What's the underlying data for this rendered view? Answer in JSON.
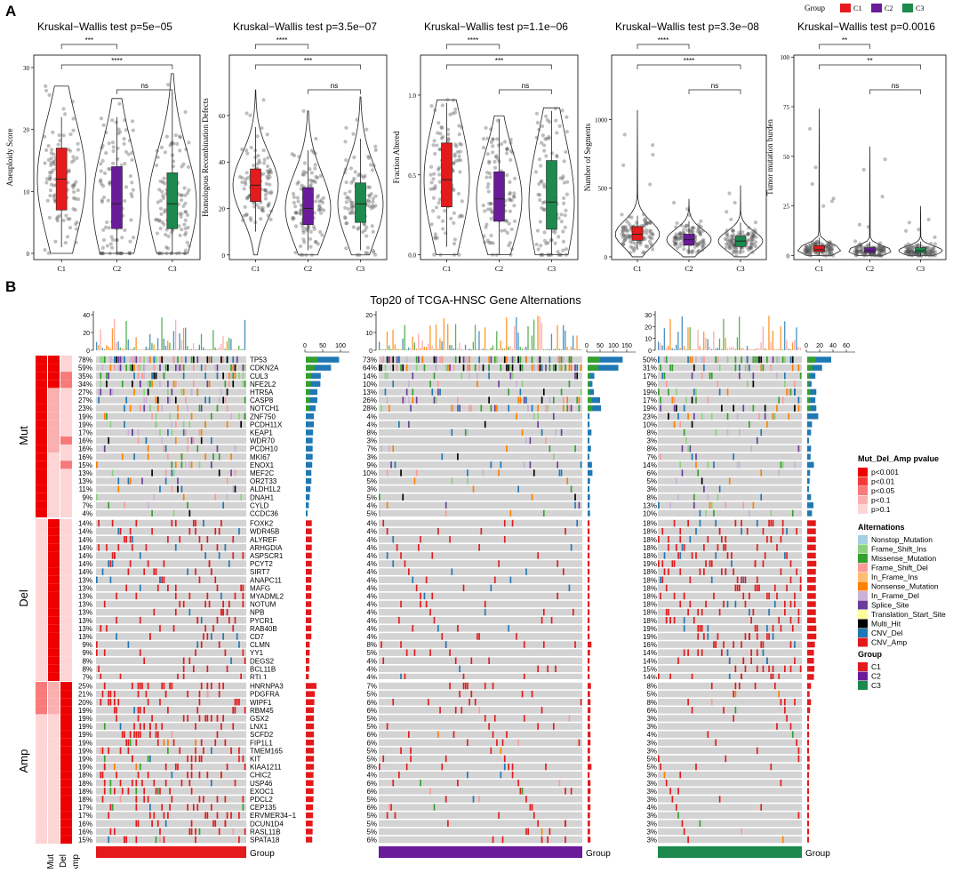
{
  "panel_labels": {
    "a": "A",
    "b": "B"
  },
  "colors": {
    "C1": "#e41a1c",
    "C2": "#6a1b9a",
    "C3": "#1b8a4c",
    "bg_cell": "#d3d3d3",
    "Nonstop_Mutation": "#a6cee3",
    "Frame_Shift_Ins": "#8dd17e",
    "Missense_Mutation": "#33a02c",
    "Frame_Shift_Del": "#fb9a99",
    "In_Frame_Ins": "#fdbf6f",
    "Nonsense_Mutation": "#ff7f00",
    "In_Frame_Del": "#cab2d6",
    "Splice_Site": "#6a3d9a",
    "Translation_Start_Site": "#ffff99",
    "Multi_Hit": "#000000",
    "CNV_Del": "#1f78b4",
    "CNV_Amp": "#e31a1c",
    "p001": "#ee0000",
    "p01": "#f53a3a",
    "p05": "#f87a7a",
    "p1": "#fbb0b0",
    "p1plus": "#fdd5d5"
  },
  "chart_data": [
    {
      "type": "violin",
      "title": "Kruskal−Wallis test p=5e−05",
      "ylabel": "Aneuploidy Score",
      "categories": [
        "C1",
        "C2",
        "C3"
      ],
      "ylim": [
        -1,
        32
      ],
      "yticks": [
        0,
        10,
        20,
        30
      ],
      "ytick_labels": [
        "0",
        "10",
        "20",
        "30"
      ],
      "violin_max": [
        27,
        25,
        29
      ],
      "box": [
        {
          "q1": 7,
          "median": 12,
          "q3": 17,
          "min": 1,
          "max": 22
        },
        {
          "q1": 4,
          "median": 8,
          "q3": 14,
          "min": 0,
          "max": 22
        },
        {
          "q1": 4,
          "median": 8,
          "q3": 13,
          "min": 0,
          "max": 26
        }
      ],
      "comparisons": [
        {
          "from": "C1",
          "to": "C2",
          "label": "***"
        },
        {
          "from": "C1",
          "to": "C3",
          "label": "****"
        },
        {
          "from": "C2",
          "to": "C3",
          "label": "ns"
        }
      ]
    },
    {
      "type": "violin",
      "title": "Kruskal−Wallis test p=3.5e−07",
      "ylabel": "Homologous Recombination Defects",
      "categories": [
        "C1",
        "C2",
        "C3"
      ],
      "ylim": [
        -2,
        86
      ],
      "yticks": [
        0,
        20,
        40,
        60
      ],
      "ytick_labels": [
        "0",
        "20",
        "40",
        "60"
      ],
      "violin_max": [
        71,
        62,
        68
      ],
      "box": [
        {
          "q1": 23,
          "median": 30,
          "q3": 37,
          "min": 10,
          "max": 55
        },
        {
          "q1": 13,
          "median": 20,
          "q3": 29,
          "min": 2,
          "max": 45
        },
        {
          "q1": 14,
          "median": 22,
          "q3": 31,
          "min": 2,
          "max": 50
        }
      ],
      "comparisons": [
        {
          "from": "C1",
          "to": "C2",
          "label": "****"
        },
        {
          "from": "C1",
          "to": "C3",
          "label": "***"
        },
        {
          "from": "C2",
          "to": "C3",
          "label": "ns"
        }
      ]
    },
    {
      "type": "violin",
      "title": "Kruskal−Wallis test p=1.1e−06",
      "ylabel": "Fraction Altered",
      "categories": [
        "C1",
        "C2",
        "C3"
      ],
      "ylim": [
        -0.03,
        1.25
      ],
      "yticks": [
        0,
        0.5,
        1.0
      ],
      "ytick_labels": [
        "0.0",
        "0.5",
        "1.0"
      ],
      "violin_max": [
        0.97,
        0.87,
        0.92
      ],
      "box": [
        {
          "q1": 0.3,
          "median": 0.47,
          "q3": 0.7,
          "min": 0.05,
          "max": 0.95
        },
        {
          "q1": 0.21,
          "median": 0.35,
          "q3": 0.52,
          "min": 0.0,
          "max": 0.85
        },
        {
          "q1": 0.16,
          "median": 0.33,
          "q3": 0.59,
          "min": 0.0,
          "max": 0.9
        }
      ],
      "comparisons": [
        {
          "from": "C1",
          "to": "C2",
          "label": "****"
        },
        {
          "from": "C1",
          "to": "C3",
          "label": "***"
        },
        {
          "from": "C2",
          "to": "C3",
          "label": "ns"
        }
      ]
    },
    {
      "type": "violin",
      "title": "Kruskal−Wallis test p=3.3e−08",
      "ylabel": "Number of Segments",
      "categories": [
        "C1",
        "C2",
        "C3"
      ],
      "ylim": [
        -20,
        1470
      ],
      "yticks": [
        0,
        500,
        1000
      ],
      "ytick_labels": [
        "0",
        "500",
        "1000"
      ],
      "violin_max": [
        1070,
        420,
        520
      ],
      "box": [
        {
          "q1": 120,
          "median": 165,
          "q3": 220,
          "min": 50,
          "max": 300
        },
        {
          "q1": 85,
          "median": 125,
          "q3": 165,
          "min": 20,
          "max": 260
        },
        {
          "q1": 75,
          "median": 115,
          "q3": 150,
          "min": 20,
          "max": 250
        }
      ],
      "comparisons": [
        {
          "from": "C1",
          "to": "C2",
          "label": "****"
        },
        {
          "from": "C1",
          "to": "C3",
          "label": "****"
        },
        {
          "from": "C2",
          "to": "C3",
          "label": "ns"
        }
      ]
    },
    {
      "type": "violin",
      "title": "Kruskal−Wallis test p=0.0016",
      "ylabel": "Tumor mutation burden",
      "categories": [
        "C1",
        "C2",
        "C3"
      ],
      "ylim": [
        -2,
        101
      ],
      "yticks": [
        0,
        25,
        50,
        75,
        100
      ],
      "ytick_labels": [
        "0",
        "25",
        "50",
        "75",
        "100"
      ],
      "violin_max": [
        74,
        55,
        25
      ],
      "box": [
        {
          "q1": 2,
          "median": 3,
          "q3": 5,
          "min": 0,
          "max": 9
        },
        {
          "q1": 1.5,
          "median": 2.5,
          "q3": 4,
          "min": 0,
          "max": 7
        },
        {
          "q1": 1.5,
          "median": 2.5,
          "q3": 4,
          "min": 0,
          "max": 7
        }
      ],
      "comparisons": [
        {
          "from": "C1",
          "to": "C2",
          "label": "**"
        },
        {
          "from": "C1",
          "to": "C3",
          "label": "**"
        },
        {
          "from": "C2",
          "to": "C3",
          "label": "ns"
        }
      ]
    },
    {
      "type": "oncoprint",
      "title": "Top20 of TCGA-HNSC Gene Alternations",
      "row_groups": [
        "Mut",
        "Del",
        "Amp"
      ],
      "annotation_cols": [
        "Mut",
        "Del",
        "Amp"
      ],
      "bottom_label": "Group",
      "top_axes": [
        {
          "yticks": [
            "0",
            "20",
            "40"
          ]
        },
        {
          "yticks": [
            "0",
            "10",
            "20"
          ]
        },
        {
          "yticks": [
            "0",
            "10",
            "20",
            "30"
          ]
        }
      ],
      "right_axes": [
        {
          "ticks": [
            "0",
            "50",
            "100"
          ]
        },
        {
          "ticks": [
            "0",
            "50",
            "100",
            "150"
          ]
        },
        {
          "ticks": [
            "0",
            "20",
            "40",
            "60"
          ]
        }
      ],
      "genes": {
        "Mut": [
          "TP53",
          "CDKN2A",
          "CUL3",
          "NFE2L2",
          "HTR5A",
          "CASP8",
          "NOTCH1",
          "ZNF750",
          "PCDH11X",
          "KEAP1",
          "WDR70",
          "PCDH10",
          "MKI67",
          "ENOX1",
          "MEF2C",
          "OR2T33",
          "ALDH1L2",
          "DNAH1",
          "CYLD",
          "CCDC36"
        ],
        "Del": [
          "FOXK2",
          "WDR45B",
          "ALYREF",
          "ARHGDIA",
          "ASPSCR1",
          "PCYT2",
          "SIRT7",
          "ANAPC11",
          "MAFG",
          "MYADML2",
          "NOTUM",
          "NPB",
          "PYCR1",
          "RAB40B",
          "CD7",
          "CLMN",
          "YY1",
          "DEGS2",
          "BCL11B",
          "RTL1"
        ],
        "Amp": [
          "HNRNPA3",
          "PDGFRA",
          "WIPF1",
          "RBM45",
          "GSX2",
          "LNX1",
          "SCFD2",
          "FIP1L1",
          "TMEM165",
          "KIT",
          "KIAA1211",
          "CHIC2",
          "USP46",
          "EXOC1",
          "PDCL2",
          "CEP135",
          "ERVMER34−1",
          "DCUN1D4",
          "RASL11B",
          "SPATA18"
        ]
      },
      "pct": {
        "C1": {
          "Mut": [
            "78%",
            "59%",
            "35%",
            "34%",
            "27%",
            "27%",
            "23%",
            "19%",
            "19%",
            "17%",
            "16%",
            "16%",
            "16%",
            "15%",
            "13%",
            "13%",
            "11%",
            "9%",
            "7%",
            "4%"
          ],
          "Del": [
            "14%",
            "14%",
            "14%",
            "14%",
            "14%",
            "14%",
            "14%",
            "13%",
            "13%",
            "13%",
            "13%",
            "13%",
            "13%",
            "13%",
            "13%",
            "9%",
            "9%",
            "8%",
            "8%",
            "7%"
          ],
          "Amp": [
            "25%",
            "21%",
            "20%",
            "19%",
            "19%",
            "19%",
            "19%",
            "19%",
            "19%",
            "19%",
            "19%",
            "18%",
            "18%",
            "18%",
            "18%",
            "17%",
            "17%",
            "16%",
            "16%",
            "15%"
          ]
        },
        "C2": {
          "Mut": [
            "73%",
            "64%",
            "14%",
            "10%",
            "13%",
            "26%",
            "28%",
            "4%",
            "4%",
            "8%",
            "3%",
            "7%",
            "3%",
            "9%",
            "10%",
            "5%",
            "3%",
            "5%",
            "4%",
            "5%"
          ],
          "Del": [
            "4%",
            "4%",
            "4%",
            "4%",
            "4%",
            "4%",
            "4%",
            "4%",
            "4%",
            "4%",
            "4%",
            "4%",
            "4%",
            "4%",
            "4%",
            "8%",
            "5%",
            "4%",
            "4%",
            "4%"
          ],
          "Amp": [
            "7%",
            "5%",
            "6%",
            "6%",
            "5%",
            "5%",
            "6%",
            "6%",
            "5%",
            "5%",
            "8%",
            "4%",
            "6%",
            "6%",
            "5%",
            "6%",
            "5%",
            "5%",
            "5%",
            "6%"
          ]
        },
        "C3": {
          "Mut": [
            "50%",
            "31%",
            "17%",
            "9%",
            "19%",
            "17%",
            "19%",
            "23%",
            "10%",
            "8%",
            "3%",
            "8%",
            "7%",
            "14%",
            "6%",
            "5%",
            "3%",
            "8%",
            "13%",
            "10%"
          ],
          "Del": [
            "18%",
            "18%",
            "18%",
            "18%",
            "18%",
            "19%",
            "18%",
            "18%",
            "18%",
            "18%",
            "18%",
            "18%",
            "18%",
            "19%",
            "19%",
            "16%",
            "14%",
            "14%",
            "15%",
            "14%"
          ],
          "Amp": [
            "8%",
            "5%",
            "8%",
            "6%",
            "3%",
            "3%",
            "4%",
            "3%",
            "3%",
            "5%",
            "5%",
            "3%",
            "3%",
            "3%",
            "3%",
            "4%",
            "3%",
            "3%",
            "3%",
            "3%"
          ]
        }
      },
      "groups": [
        "C1",
        "C2",
        "C3"
      ]
    }
  ],
  "legend_group": {
    "title": "Group",
    "items": [
      "C1",
      "C2",
      "C3"
    ]
  },
  "legend_pvalue": {
    "title": "Mut_Del_Amp pvalue",
    "items": [
      "p<0.001",
      "p<0.01",
      "p<0.05",
      "p<0.1",
      "p>0.1"
    ]
  },
  "legend_alt": {
    "title": "Alternations",
    "items": [
      "Nonstop_Mutation",
      "Frame_Shift_Ins",
      "Missense_Mutation",
      "Frame_Shift_Del",
      "In_Frame_Ins",
      "Nonsense_Mutation",
      "In_Frame_Del",
      "Splice_Site",
      "Translation_Start_Site",
      "Multi_Hit",
      "CNV_Del",
      "CNV_Amp"
    ]
  },
  "legend_group2": {
    "title": "Group",
    "items": [
      "C1",
      "C2",
      "C3"
    ]
  }
}
